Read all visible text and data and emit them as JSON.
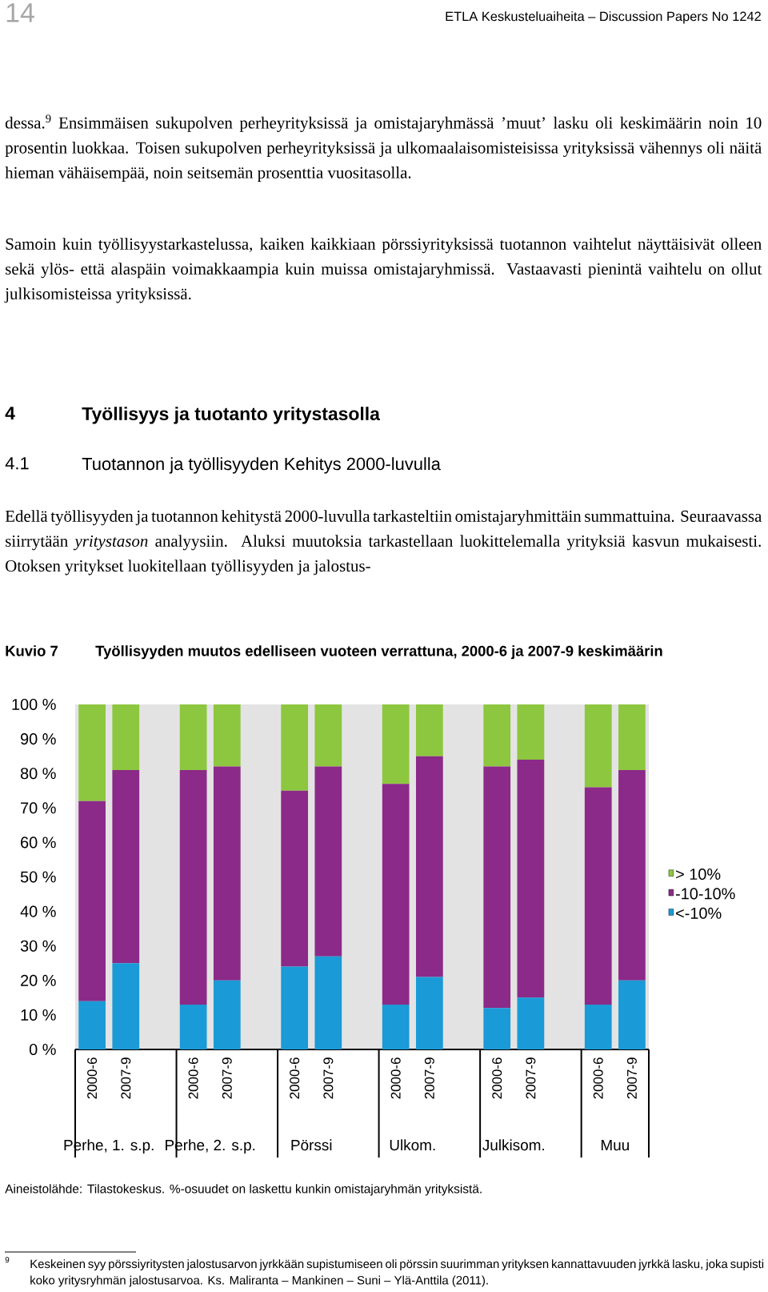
{
  "chart_data": {
    "type": "bar",
    "stacked": true,
    "title": "Työllisyyden muutos edelliseen vuoteen verrattuna, 2000-6 ja 2007-9 keskimäärin",
    "categories": [
      "2000-6",
      "2007-9",
      "2000-6",
      "2007-9",
      "2000-6",
      "2007-9",
      "2000-6",
      "2007-9",
      "2000-6",
      "2007-9",
      "2000-6",
      "2007-9"
    ],
    "series": [
      {
        "name": "<-10%",
        "color": "#1a9ad6",
        "values": [
          14,
          25,
          13,
          20,
          24,
          27,
          13,
          21,
          12,
          15,
          13,
          20
        ]
      },
      {
        "name": "-10-10%",
        "color": "#8b2a88",
        "values": [
          58,
          56,
          68,
          62,
          51,
          55,
          64,
          64,
          70,
          69,
          63,
          61
        ]
      },
      {
        "name": "> 10%",
        "color": "#8dc63f",
        "values": [
          28,
          19,
          19,
          18,
          25,
          18,
          23,
          15,
          18,
          16,
          24,
          19
        ]
      }
    ],
    "ylim": [
      0,
      100
    ],
    "yticks": [
      {
        "value": 0,
        "label": "0 %"
      },
      {
        "value": 10,
        "label": "10 %"
      },
      {
        "value": 20,
        "label": "20 %"
      },
      {
        "value": 30,
        "label": "30 %"
      },
      {
        "value": 40,
        "label": "40 %"
      },
      {
        "value": 50,
        "label": "50 %"
      },
      {
        "value": 60,
        "label": "60 %"
      },
      {
        "value": 70,
        "label": "70 %"
      },
      {
        "value": 80,
        "label": "80 %"
      },
      {
        "value": 90,
        "label": "90 %"
      },
      {
        "value": 100,
        "label": "100 %"
      }
    ],
    "legend": "right",
    "annotations": [
      "14",
      "ETLA Keskusteluaiheita – Discussion Papers No 1242",
      "dessa.$^{9}$ Ensimmäisen sukupolven perheyrityksissä ja omistajaryhmässä ’muut’ lasku oli keskimäärin noin 10 prosentin luokkaa. Toisen sukupolven perheyrityksissä ja ulkomaalaisomisteisissa yrityksissä vähennys oli näitä hieman vähäisempää, noin seitsemän prosenttia vuositasolla.",
      "Samoin kuin työllisyystarkastelussa, kaiken kaikkiaan pörssiyrityksissä tuotannon vaihtelut näyttäisivät olleen sekä ylös- että alaspäin voimakkaampia kuin muissa omistajaryhmissä. Vastaavasti pienintä vaihtelu on ollut julkisomisteissa yrityksissä.",
      "4",
      "Työllisyys ja tuotanto yritystasolla",
      "4.1",
      "Tuotannon ja työllisyyden Kehitys 2000-luvulla",
      "Edellä työllisyyden ja tuotannon kehitystä 2000-luvulla tarkasteltiin omistajaryhmittäin summattuina. Seuraavassa siirrytään *yritystason* analyysiin. Aluksi muutoksia tarkastellaan luokittelemalla yrityksiä kasvun mukaisesti. Otoksen yritykset luokitellaan työllisyyden ja jalostus-",
      "Kuvio 7",
      "Perhe, 1. s.p.",
      "Perhe, 2. s.p.",
      "Pörssi",
      "Ulkom.",
      "Julkisom.",
      "Muu",
      "Aineistolähde: Tilastokeskus. %-osuudet on laskettu kunkin omistajaryhmän yrityksistä.",
      "9",
      "Keskeinen syy pörssiyritysten jalostusarvon jyrkkään supistumiseen oli pörssin suurimman yrityksen kannattavuuden jyrkkä lasku, joka supisti koko yritysryhmän jalostusarvoa. Ks. Maliranta – Mankinen – Suni – Ylä-Anttila (2011)."
    ]
  }
}
